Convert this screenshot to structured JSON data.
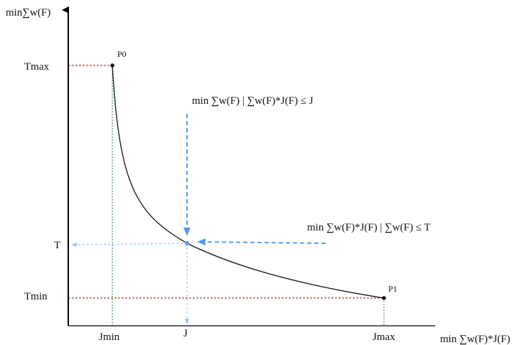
{
  "axes": {
    "y_label": "min∑w(F)",
    "x_label": "min ∑w(F)*J(F)"
  },
  "y_ticks": {
    "tmax": "Tmax",
    "t": "T",
    "tmin": "Tmin"
  },
  "x_ticks": {
    "jmin": "Jmin",
    "j": "J",
    "jmax": "Jmax"
  },
  "points": {
    "p0": "P0",
    "p1": "P1"
  },
  "annotations": {
    "vertical_constraint": "min ∑w(F) | ∑w(F)*J(F) ≤ J",
    "horizontal_constraint": "min ∑w(F)*J(F) | ∑w(F) ≤ T"
  },
  "colors": {
    "axis": "#000000",
    "curve": "#111111",
    "red_guides": "#8b1a1a",
    "green_guides": "#2e7d32",
    "blue_arrows": "#5b9bf0",
    "blue_guides": "#9cc3f5"
  }
}
